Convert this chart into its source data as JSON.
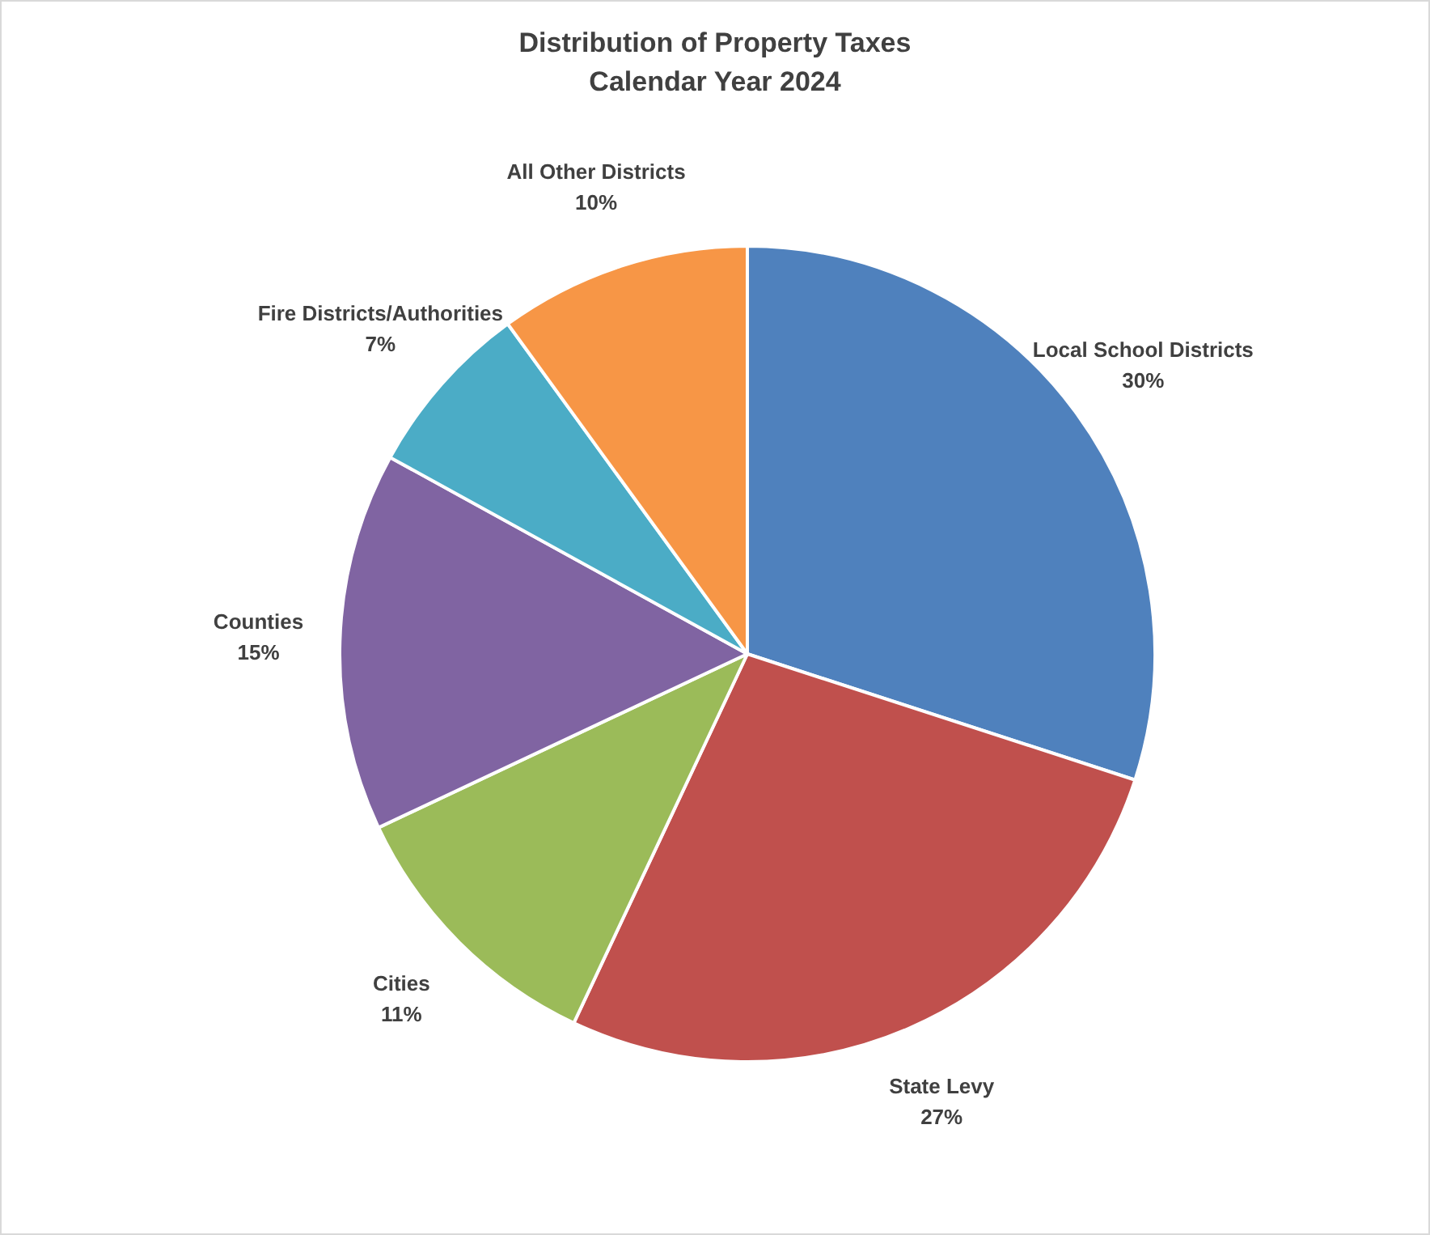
{
  "chart_data": {
    "type": "pie",
    "title": "Distribution of Property Taxes",
    "subtitle": "Calendar Year 2024",
    "categories": [
      "Local School Districts",
      "State Levy",
      "Cities",
      "Counties",
      "Fire Districts/Authorities",
      "All Other Districts"
    ],
    "values": [
      30,
      27,
      11,
      15,
      7,
      10
    ],
    "value_labels": [
      "30%",
      "27%",
      "11%",
      "15%",
      "7%",
      "10%"
    ],
    "colors": [
      "#4f81bd",
      "#c0504d",
      "#9bbb59",
      "#8064a2",
      "#4bacc6",
      "#f79646"
    ],
    "legend": false
  }
}
